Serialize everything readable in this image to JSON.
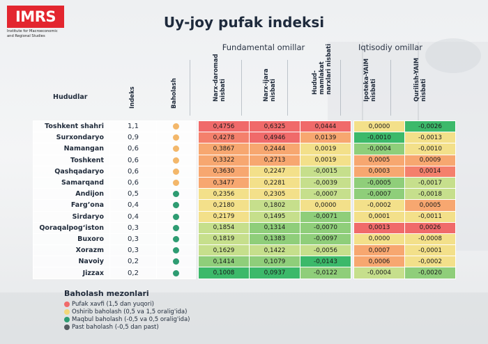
{
  "logo": {
    "name": "IMRS",
    "subtitle": "Institute for Macroeconomic and Regional Studies"
  },
  "title": "Uy-joy pufak indeksi",
  "groups": {
    "fundamental": "Fundamental omillar",
    "economic": "Iqtisodiy omillar"
  },
  "headers": {
    "region": "Hududlar",
    "index": "Indeks",
    "rating": "Baholash",
    "c1": "Narx-daromad nisbati",
    "c2": "Narx-ijara nisbati",
    "c3": "Hudud-mamlakat narxlari nisbati",
    "c4": "Ipoteka-YAIM nisbati",
    "c5": "Qurilish-YAIM nisbati"
  },
  "colors": {
    "red": "#f06a6a",
    "red2": "#f4806c",
    "orange": "#f7a770",
    "yellow": "#f3e08a",
    "lgreen": "#c6df8c",
    "green": "#8fce7a",
    "dgreen": "#3cb96a",
    "dot_orange": "#f3b76a",
    "dot_green": "#2e9c72",
    "dot_red": "#f06a6a",
    "dot_yellow": "#f2d77a",
    "dot_gray": "#555b60"
  },
  "rows": [
    {
      "region": "Toshkent shahri",
      "index": "1,1",
      "dot": "dot_orange",
      "v": [
        "0,4756",
        "0,6325",
        "0,0444",
        "0,0000",
        "-0,0026"
      ],
      "c": [
        "red",
        "red",
        "red",
        "yellow",
        "dgreen"
      ]
    },
    {
      "region": "Surxondaryo",
      "index": "0,9",
      "dot": "dot_orange",
      "v": [
        "0,4278",
        "0,4946",
        "0,0139",
        "-0,0010",
        "-0,0013"
      ],
      "c": [
        "red2",
        "red",
        "orange",
        "dgreen",
        "yellow"
      ]
    },
    {
      "region": "Namangan",
      "index": "0,6",
      "dot": "dot_orange",
      "v": [
        "0,3867",
        "0,2444",
        "0,0019",
        "-0,0004",
        "-0,0010"
      ],
      "c": [
        "orange",
        "orange",
        "yellow",
        "green",
        "yellow"
      ]
    },
    {
      "region": "Toshkent",
      "index": "0,6",
      "dot": "dot_orange",
      "v": [
        "0,3322",
        "0,2713",
        "0,0019",
        "0,0005",
        "0,0009"
      ],
      "c": [
        "orange",
        "orange",
        "yellow",
        "orange",
        "orange"
      ]
    },
    {
      "region": "Qashqadaryo",
      "index": "0,6",
      "dot": "dot_orange",
      "v": [
        "0,3630",
        "0,2247",
        "-0,0015",
        "0,0003",
        "0,0014"
      ],
      "c": [
        "orange",
        "yellow",
        "lgreen",
        "orange",
        "red2"
      ]
    },
    {
      "region": "Samarqand",
      "index": "0,6",
      "dot": "dot_orange",
      "v": [
        "0,3477",
        "0,2281",
        "-0,0039",
        "-0,0005",
        "-0,0017"
      ],
      "c": [
        "orange",
        "yellow",
        "lgreen",
        "green",
        "lgreen"
      ]
    },
    {
      "region": "Andijon",
      "index": "0,5",
      "dot": "dot_green",
      "v": [
        "0,2356",
        "0,2305",
        "-0,0007",
        "-0,0007",
        "-0,0018"
      ],
      "c": [
        "yellow",
        "yellow",
        "lgreen",
        "green",
        "lgreen"
      ]
    },
    {
      "region": "Farg’ona",
      "index": "0,4",
      "dot": "dot_green",
      "v": [
        "0,2180",
        "0,1802",
        "0,0000",
        "-0,0002",
        "0,0005"
      ],
      "c": [
        "yellow",
        "lgreen",
        "yellow",
        "yellow",
        "orange"
      ]
    },
    {
      "region": "Sirdaryo",
      "index": "0,4",
      "dot": "dot_green",
      "v": [
        "0,2179",
        "0,1495",
        "-0,0071",
        "0,0001",
        "-0,0011"
      ],
      "c": [
        "yellow",
        "lgreen",
        "green",
        "yellow",
        "yellow"
      ]
    },
    {
      "region": "Qoraqalpog‘iston",
      "index": "0,3",
      "dot": "dot_green",
      "v": [
        "0,1854",
        "0,1314",
        "-0,0070",
        "0,0013",
        "0,0026"
      ],
      "c": [
        "lgreen",
        "green",
        "green",
        "red",
        "red"
      ]
    },
    {
      "region": "Buxoro",
      "index": "0,3",
      "dot": "dot_green",
      "v": [
        "0,1819",
        "0,1383",
        "-0,0097",
        "0,0000",
        "-0,0008"
      ],
      "c": [
        "lgreen",
        "green",
        "green",
        "yellow",
        "yellow"
      ]
    },
    {
      "region": "Xorazm",
      "index": "0,3",
      "dot": "dot_green",
      "v": [
        "0,1629",
        "0,1422",
        "-0,0056",
        "0,0007",
        "-0,0001"
      ],
      "c": [
        "lgreen",
        "lgreen",
        "lgreen",
        "orange",
        "yellow"
      ]
    },
    {
      "region": "Navoiy",
      "index": "0,2",
      "dot": "dot_green",
      "v": [
        "0,1414",
        "0,1079",
        "-0,0143",
        "0,0006",
        "-0,0002"
      ],
      "c": [
        "green",
        "green",
        "dgreen",
        "orange",
        "yellow"
      ]
    },
    {
      "region": "Jizzax",
      "index": "0,2",
      "dot": "dot_green",
      "v": [
        "0,1008",
        "0,0937",
        "-0,0122",
        "-0,0004",
        "-0,0020"
      ],
      "c": [
        "dgreen",
        "dgreen",
        "green",
        "lgreen",
        "green"
      ]
    }
  ],
  "legend": {
    "title": "Baholash mezonlari",
    "items": [
      {
        "dot": "dot_red",
        "label": "Pufak xavfi (1,5 dan yuqori)"
      },
      {
        "dot": "dot_yellow",
        "label": "Oshirib baholash (0,5 va 1,5 oralig'ida)"
      },
      {
        "dot": "dot_green",
        "label": "Maqbul baholash (-0,5 va 0,5 oralig'ida)"
      },
      {
        "dot": "dot_gray",
        "label": "Past baholash (-0,5 dan past)"
      }
    ]
  }
}
